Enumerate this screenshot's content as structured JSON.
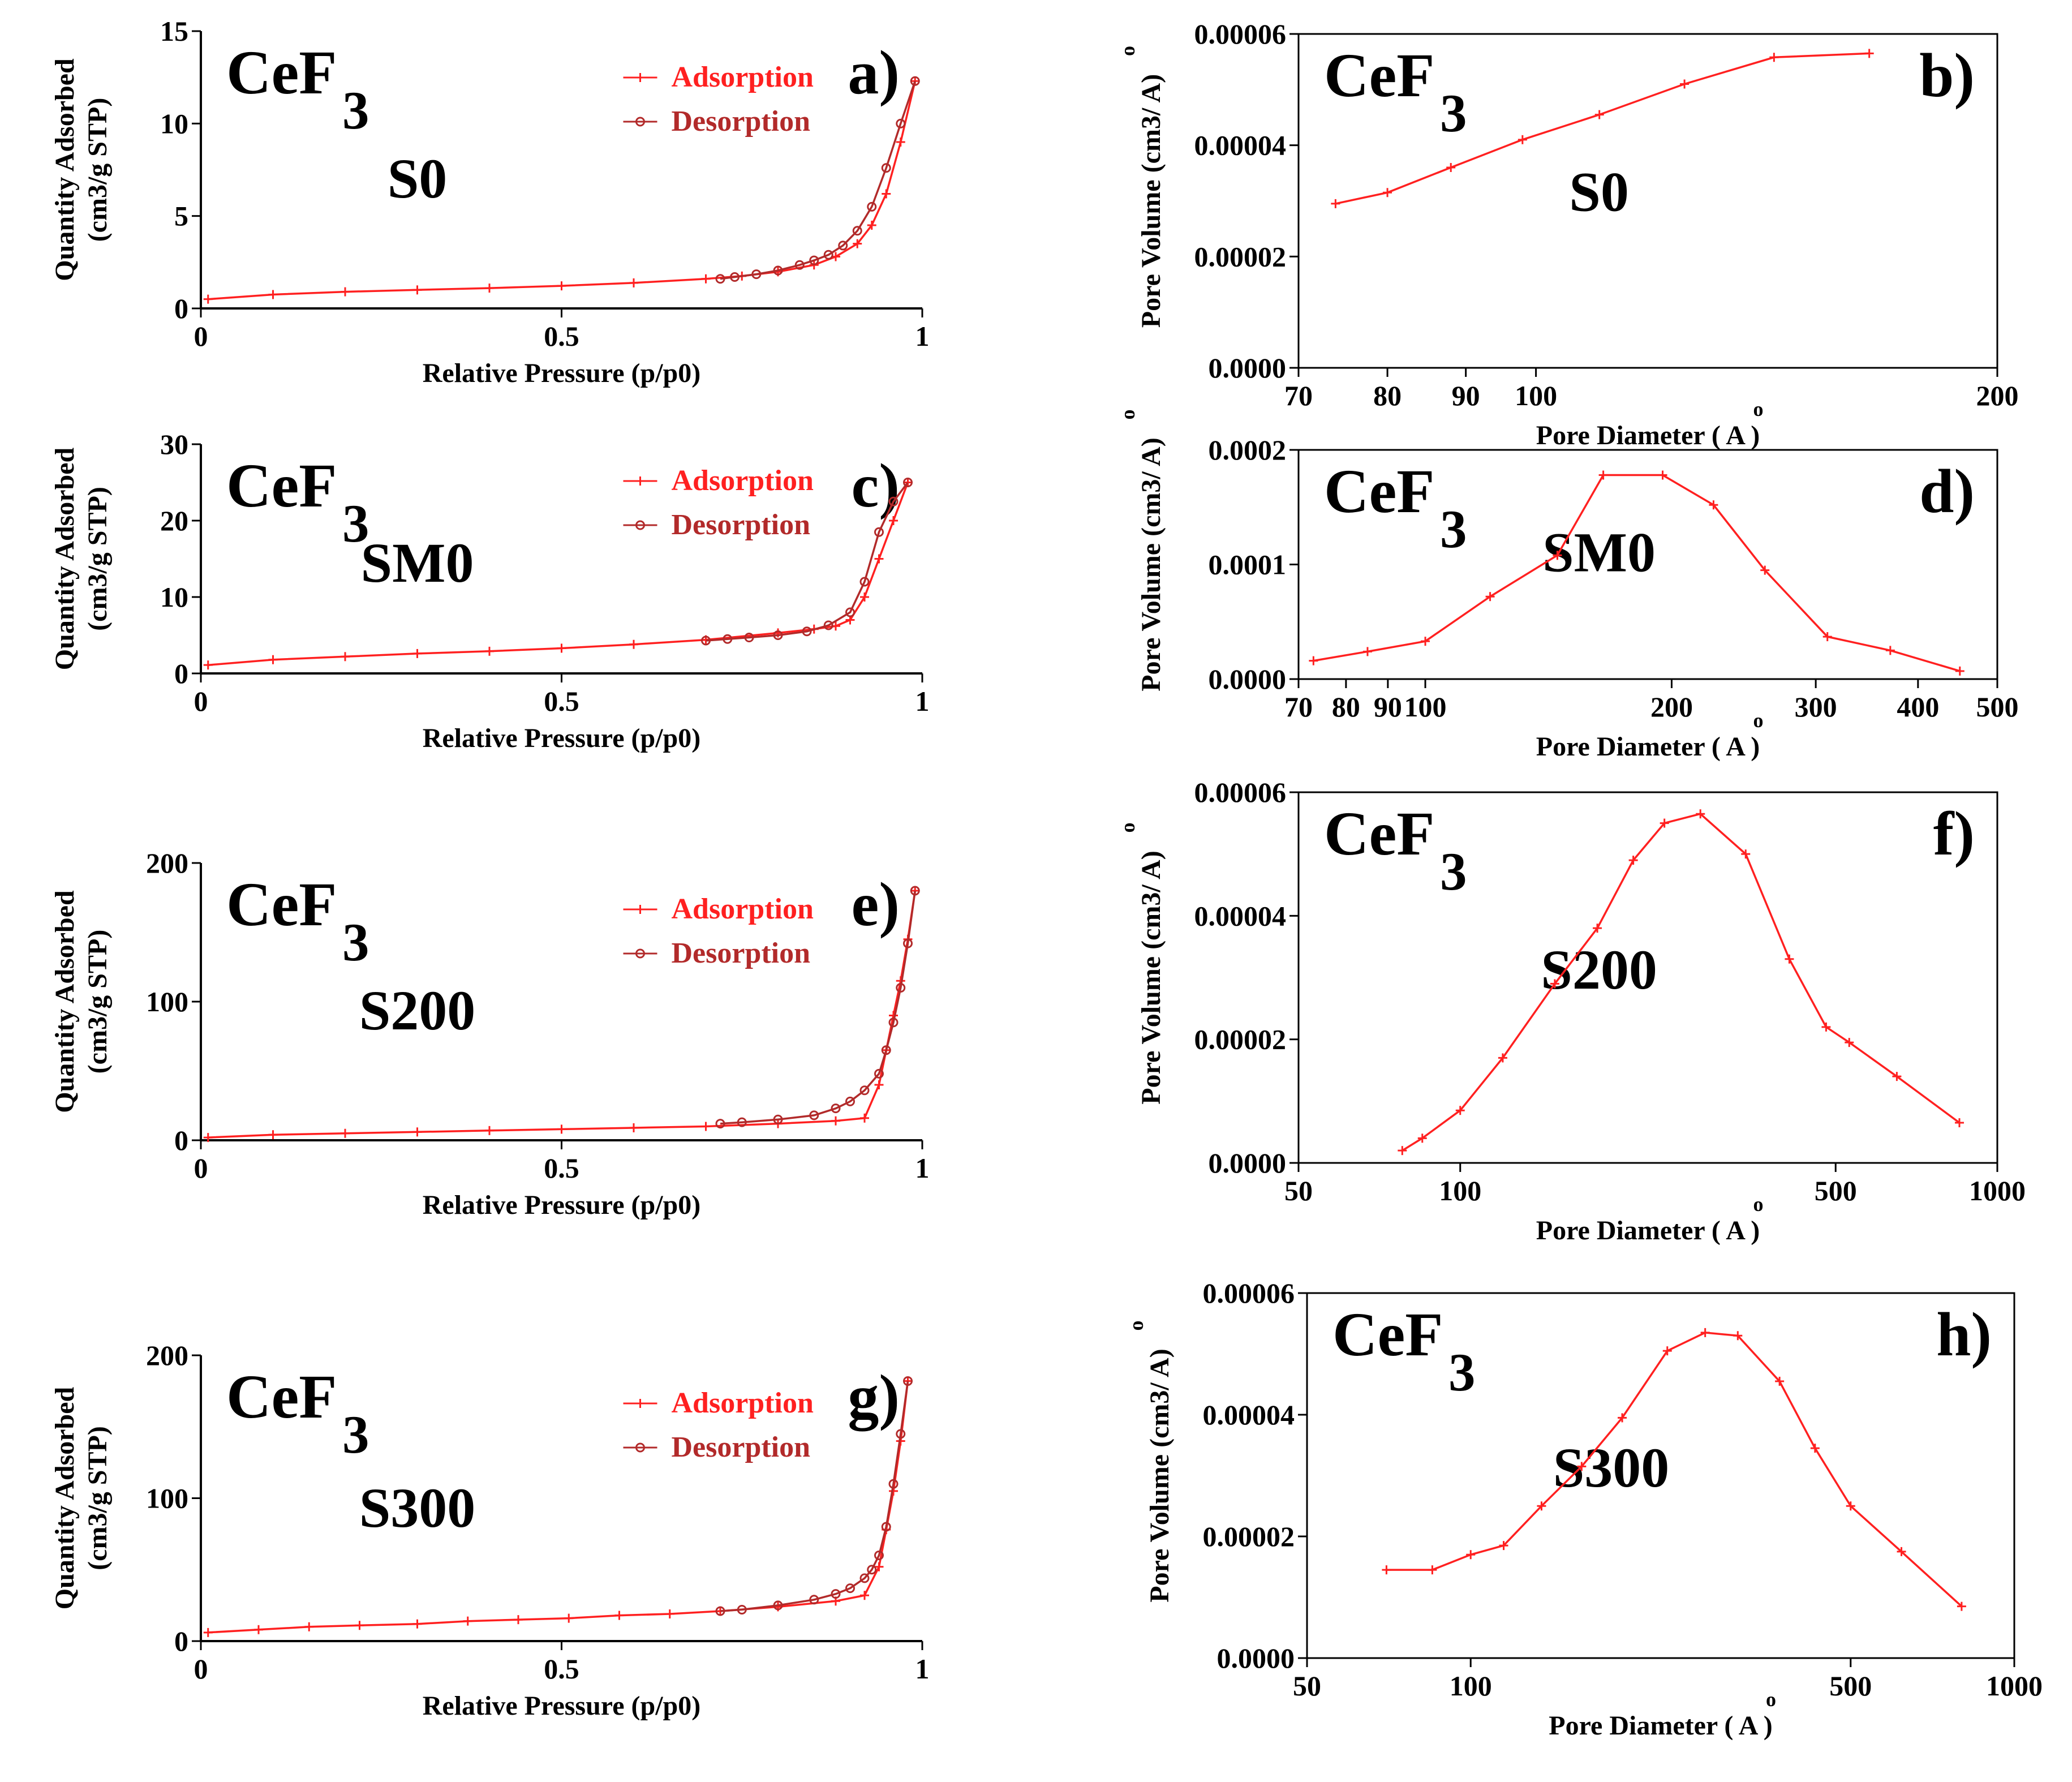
{
  "figure": {
    "compound": "CeF",
    "compound_subscript": "3"
  },
  "labels": {
    "relative_pressure": "Relative Pressure (p/p0)",
    "quantity_adsorbed_line1": "Quantity Adsorbed",
    "quantity_adsorbed_line2": "(cm3/g STP)",
    "pore_volume": "Pore Volume (cm3/ A)",
    "pore_diameter": "Pore Diameter ( A )",
    "ring": "o"
  },
  "chart_data": [
    {
      "id": "a",
      "panel_label": "a)",
      "type": "line",
      "sample": "S0",
      "xlabel": "Relative Pressure (p/p0)",
      "ylabel": "Quantity Adsorbed (cm3/g STP)",
      "xlim": [
        0,
        1
      ],
      "ylim": [
        0,
        15
      ],
      "xticks": [
        0,
        0.5,
        1
      ],
      "xtick_labels": [
        "0",
        "0.5",
        "1"
      ],
      "yticks": [
        0,
        5,
        10,
        15
      ],
      "ytick_labels": [
        "0",
        "5",
        "10",
        "15"
      ],
      "legend": [
        "Adsorption",
        "Desorption"
      ],
      "series": [
        {
          "name": "Adsorption",
          "color": "#ff2020",
          "marker": "plus",
          "x": [
            0.01,
            0.1,
            0.2,
            0.3,
            0.4,
            0.5,
            0.6,
            0.7,
            0.75,
            0.8,
            0.85,
            0.88,
            0.91,
            0.93,
            0.95,
            0.97,
            0.99
          ],
          "y": [
            0.5,
            0.75,
            0.9,
            1.0,
            1.1,
            1.22,
            1.38,
            1.6,
            1.75,
            1.98,
            2.35,
            2.8,
            3.5,
            4.5,
            6.2,
            9.0,
            12.3
          ]
        },
        {
          "name": "Desorption",
          "color": "#b22a2a",
          "marker": "circle",
          "x": [
            0.99,
            0.97,
            0.95,
            0.93,
            0.91,
            0.89,
            0.87,
            0.85,
            0.83,
            0.8,
            0.77,
            0.74,
            0.72
          ],
          "y": [
            12.3,
            10.0,
            7.6,
            5.5,
            4.2,
            3.4,
            2.9,
            2.6,
            2.35,
            2.05,
            1.85,
            1.7,
            1.6
          ]
        }
      ]
    },
    {
      "id": "b",
      "panel_label": "b)",
      "type": "line",
      "sample": "S0",
      "xscale": "log",
      "xlabel": "Pore Diameter ( A )",
      "ylabel": "Pore Volume (cm3/ A)",
      "xlim": [
        70,
        200
      ],
      "ylim": [
        0,
        6e-05
      ],
      "xticks": [
        70,
        80,
        90,
        100,
        200
      ],
      "xtick_labels": [
        "70",
        "80",
        "90",
        "100",
        "200"
      ],
      "yticks": [
        0,
        2e-05,
        4e-05,
        6e-05
      ],
      "ytick_labels": [
        "0.0000",
        "0.00002",
        "0.00004",
        "0.00006"
      ],
      "series": [
        {
          "name": "S0",
          "color": "#ff2020",
          "marker": "plus",
          "x": [
            74,
            80,
            88,
            98,
            110,
            125,
            143,
            165
          ],
          "y": [
            2.95e-05,
            3.15e-05,
            3.6e-05,
            4.1e-05,
            4.55e-05,
            5.1e-05,
            5.58e-05,
            5.65e-05
          ]
        }
      ]
    },
    {
      "id": "c",
      "panel_label": "c)",
      "type": "line",
      "sample": "SM0",
      "xlabel": "Relative Pressure (p/p0)",
      "ylabel": "Quantity Adsorbed (cm3/g STP)",
      "xlim": [
        0,
        1
      ],
      "ylim": [
        0,
        30
      ],
      "xticks": [
        0,
        0.5,
        1
      ],
      "xtick_labels": [
        "0",
        "0.5",
        "1"
      ],
      "yticks": [
        0,
        10,
        20,
        30
      ],
      "ytick_labels": [
        "0",
        "10",
        "20",
        "30"
      ],
      "legend": [
        "Adsorption",
        "Desorption"
      ],
      "series": [
        {
          "name": "Adsorption",
          "color": "#ff2020",
          "marker": "plus",
          "x": [
            0.01,
            0.1,
            0.2,
            0.3,
            0.4,
            0.5,
            0.6,
            0.7,
            0.8,
            0.85,
            0.88,
            0.9,
            0.92,
            0.94,
            0.96,
            0.98
          ],
          "y": [
            1.1,
            1.8,
            2.2,
            2.6,
            2.9,
            3.3,
            3.8,
            4.4,
            5.3,
            5.8,
            6.2,
            7.0,
            10.0,
            15.0,
            20.0,
            25.0
          ]
        },
        {
          "name": "Desorption",
          "color": "#b22a2a",
          "marker": "circle",
          "x": [
            0.98,
            0.96,
            0.94,
            0.92,
            0.9,
            0.87,
            0.84,
            0.8,
            0.76,
            0.73,
            0.7
          ],
          "y": [
            25.0,
            22.5,
            18.5,
            12.0,
            8.0,
            6.3,
            5.5,
            5.0,
            4.7,
            4.5,
            4.3
          ]
        }
      ]
    },
    {
      "id": "d",
      "panel_label": "d)",
      "type": "line",
      "sample": "SM0",
      "xscale": "log",
      "xlabel": "Pore Diameter ( A )",
      "ylabel": "Pore Volume (cm3/ A)",
      "xlim": [
        70,
        500
      ],
      "ylim": [
        0,
        0.0002
      ],
      "xticks": [
        70,
        80,
        90,
        100,
        200,
        300,
        400,
        500
      ],
      "xtick_labels": [
        "70",
        "80",
        "90",
        "100",
        "200",
        "300",
        "400",
        "500"
      ],
      "yticks": [
        0,
        0.0001,
        0.0002
      ],
      "ytick_labels": [
        "0.0000",
        "0.0001",
        "0.0002"
      ],
      "series": [
        {
          "name": "SM0",
          "color": "#ff2020",
          "marker": "plus",
          "x": [
            73,
            85,
            100,
            120,
            145,
            165,
            195,
            225,
            260,
            310,
            370,
            450
          ],
          "y": [
            1.6e-05,
            2.4e-05,
            3.3e-05,
            7.2e-05,
            0.000108,
            0.000178,
            0.000178,
            0.000152,
            9.5e-05,
            3.7e-05,
            2.5e-05,
            7e-06
          ]
        }
      ]
    },
    {
      "id": "e",
      "panel_label": "e)",
      "type": "line",
      "sample": "S200",
      "xlabel": "Relative Pressure (p/p0)",
      "ylabel": "Quantity Adsorbed (cm3/g STP)",
      "xlim": [
        0,
        1
      ],
      "ylim": [
        0,
        200
      ],
      "xticks": [
        0,
        0.5,
        1
      ],
      "xtick_labels": [
        "0",
        "0.5",
        "1"
      ],
      "yticks": [
        0,
        100,
        200
      ],
      "ytick_labels": [
        "0",
        "100",
        "200"
      ],
      "legend": [
        "Adsorption",
        "Desorption"
      ],
      "series": [
        {
          "name": "Adsorption",
          "color": "#ff2020",
          "marker": "plus",
          "x": [
            0.01,
            0.1,
            0.2,
            0.3,
            0.4,
            0.5,
            0.6,
            0.7,
            0.8,
            0.88,
            0.92,
            0.94,
            0.95,
            0.96,
            0.97,
            0.98,
            0.99
          ],
          "y": [
            2,
            4,
            5,
            6,
            7,
            8,
            9,
            10,
            12,
            14,
            16,
            40,
            65,
            90,
            115,
            145,
            180
          ]
        },
        {
          "name": "Desorption",
          "color": "#b22a2a",
          "marker": "circle",
          "x": [
            0.99,
            0.98,
            0.97,
            0.96,
            0.95,
            0.94,
            0.92,
            0.9,
            0.88,
            0.85,
            0.8,
            0.75,
            0.72
          ],
          "y": [
            180,
            142,
            110,
            85,
            65,
            48,
            36,
            28,
            23,
            18,
            15,
            13,
            12
          ]
        }
      ]
    },
    {
      "id": "f",
      "panel_label": "f)",
      "type": "line",
      "sample": "S200",
      "xscale": "log",
      "xlabel": "Pore Diameter ( A )",
      "ylabel": "Pore Volume (cm3/ A)",
      "xlim": [
        50,
        1000
      ],
      "ylim": [
        0,
        6e-05
      ],
      "xticks": [
        50,
        100,
        500,
        1000
      ],
      "xtick_labels": [
        "50",
        "100",
        "500",
        "1000"
      ],
      "yticks": [
        0,
        2e-05,
        4e-05,
        6e-05
      ],
      "ytick_labels": [
        "0.0000",
        "0.00002",
        "0.00004",
        "0.00006"
      ],
      "series": [
        {
          "name": "S200",
          "color": "#ff2020",
          "marker": "plus",
          "x": [
            78,
            85,
            100,
            120,
            150,
            180,
            210,
            240,
            280,
            340,
            410,
            480,
            530,
            650,
            850
          ],
          "y": [
            2e-06,
            4e-06,
            8.5e-06,
            1.7e-05,
            2.9e-05,
            3.8e-05,
            4.9e-05,
            5.5e-05,
            5.65e-05,
            5e-05,
            3.3e-05,
            2.2e-05,
            1.95e-05,
            1.4e-05,
            6.5e-06
          ]
        }
      ]
    },
    {
      "id": "g",
      "panel_label": "g)",
      "type": "line",
      "sample": "S300",
      "xlabel": "Relative Pressure (p/p0)",
      "ylabel": "Quantity Adsorbed (cm3/g STP)",
      "xlim": [
        0,
        1
      ],
      "ylim": [
        0,
        200
      ],
      "xticks": [
        0,
        0.5,
        1
      ],
      "xtick_labels": [
        "0",
        "0.5",
        "1"
      ],
      "yticks": [
        0,
        100,
        200
      ],
      "ytick_labels": [
        "0",
        "100",
        "200"
      ],
      "legend": [
        "Adsorption",
        "Desorption"
      ],
      "series": [
        {
          "name": "Adsorption",
          "color": "#ff2020",
          "marker": "plus",
          "x": [
            0.01,
            0.08,
            0.15,
            0.22,
            0.3,
            0.37,
            0.44,
            0.51,
            0.58,
            0.65,
            0.72,
            0.8,
            0.88,
            0.92,
            0.94,
            0.95,
            0.96,
            0.97,
            0.98
          ],
          "y": [
            6,
            8,
            10,
            11,
            12,
            14,
            15,
            16,
            18,
            19,
            21,
            24,
            28,
            32,
            52,
            78,
            105,
            140,
            182
          ]
        },
        {
          "name": "Desorption",
          "color": "#b22a2a",
          "marker": "circle",
          "x": [
            0.98,
            0.97,
            0.96,
            0.95,
            0.94,
            0.93,
            0.92,
            0.9,
            0.88,
            0.85,
            0.8,
            0.75,
            0.72
          ],
          "y": [
            182,
            145,
            110,
            80,
            60,
            50,
            44,
            37,
            33,
            29,
            25,
            22,
            21
          ]
        }
      ]
    },
    {
      "id": "h",
      "panel_label": "h)",
      "type": "line",
      "sample": "S300",
      "xscale": "log",
      "xlabel": "Pore Diameter ( A )",
      "ylabel": "Pore Volume (cm3/ A)",
      "xlim": [
        50,
        1000
      ],
      "ylim": [
        0,
        6e-05
      ],
      "xticks": [
        50,
        100,
        500,
        1000
      ],
      "xtick_labels": [
        "50",
        "100",
        "500",
        "1000"
      ],
      "yticks": [
        0,
        2e-05,
        4e-05,
        6e-05
      ],
      "ytick_labels": [
        "0.0000",
        "0.00002",
        "0.00004",
        "0.00006"
      ],
      "series": [
        {
          "name": "S300",
          "color": "#ff2020",
          "marker": "plus",
          "x": [
            70,
            85,
            100,
            115,
            135,
            160,
            190,
            230,
            270,
            310,
            370,
            430,
            500,
            620,
            800
          ],
          "y": [
            1.45e-05,
            1.45e-05,
            1.7e-05,
            1.85e-05,
            2.5e-05,
            3.15e-05,
            3.95e-05,
            5.05e-05,
            5.35e-05,
            5.3e-05,
            4.55e-05,
            3.45e-05,
            2.5e-05,
            1.75e-05,
            8.5e-06
          ]
        }
      ]
    }
  ]
}
